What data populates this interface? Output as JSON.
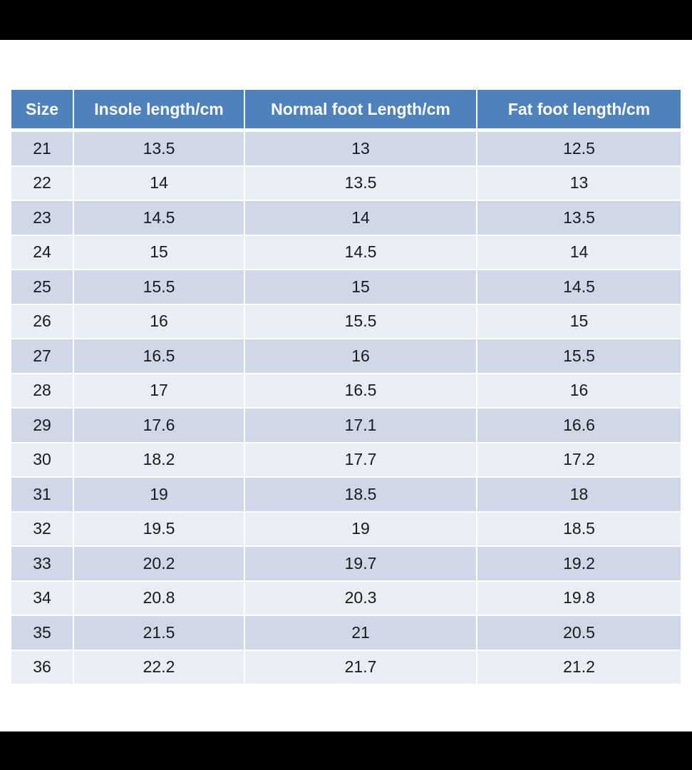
{
  "table": {
    "headers": [
      "Size",
      "Insole length/cm",
      "Normal foot Length/cm",
      "Fat foot length/cm"
    ],
    "rows": [
      [
        "21",
        "13.5",
        "13",
        "12.5"
      ],
      [
        "22",
        "14",
        "13.5",
        "13"
      ],
      [
        "23",
        "14.5",
        "14",
        "13.5"
      ],
      [
        "24",
        "15",
        "14.5",
        "14"
      ],
      [
        "25",
        "15.5",
        "15",
        "14.5"
      ],
      [
        "26",
        "16",
        "15.5",
        "15"
      ],
      [
        "27",
        "16.5",
        "16",
        "15.5"
      ],
      [
        "28",
        "17",
        "16.5",
        "16"
      ],
      [
        "29",
        "17.6",
        "17.1",
        "16.6"
      ],
      [
        "30",
        "18.2",
        "17.7",
        "17.2"
      ],
      [
        "31",
        "19",
        "18.5",
        "18"
      ],
      [
        "32",
        "19.5",
        "19",
        "18.5"
      ],
      [
        "33",
        "20.2",
        "19.7",
        "19.2"
      ],
      [
        "34",
        "20.8",
        "20.3",
        "19.8"
      ],
      [
        "35",
        "21.5",
        "21",
        "20.5"
      ],
      [
        "36",
        "22.2",
        "21.7",
        "21.2"
      ]
    ]
  },
  "colors": {
    "header_bg": "#4f81bd",
    "row_dark": "#d0d8e8",
    "row_light": "#e9edf4",
    "letterbox": "#000000"
  }
}
